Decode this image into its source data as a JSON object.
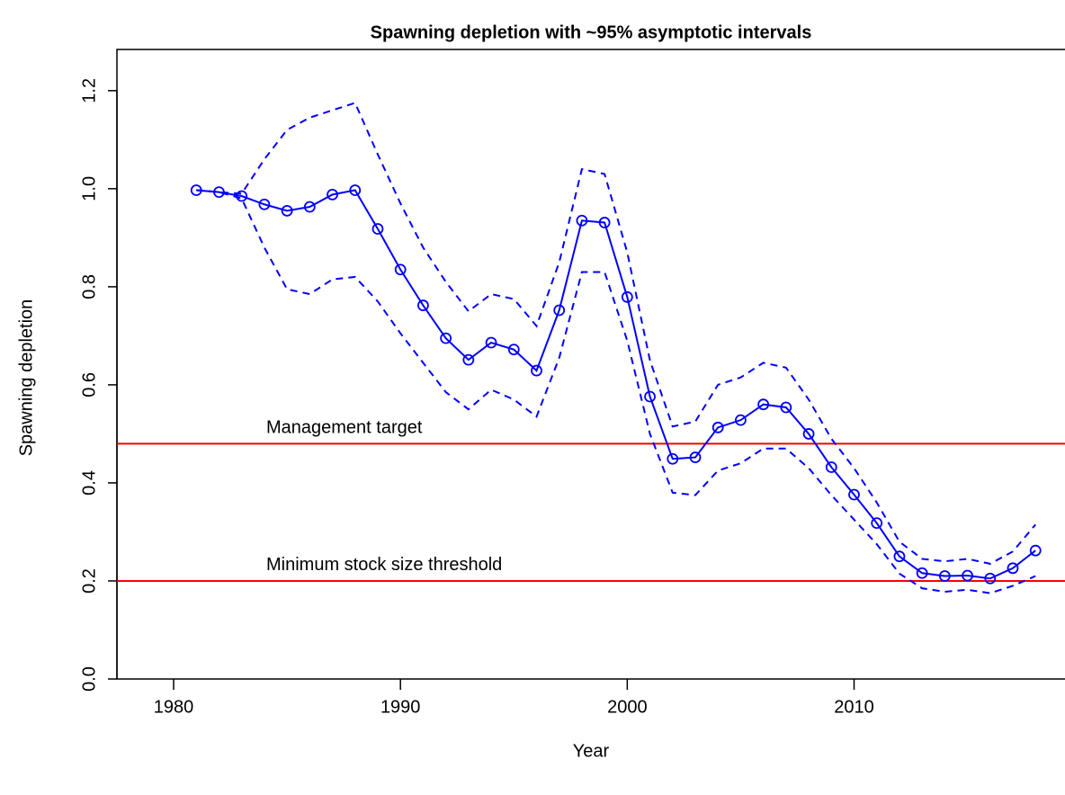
{
  "chart_data": {
    "type": "line",
    "title": "Spawning depletion with ~95% asymptotic intervals",
    "x_label": "Year",
    "y_label": "Spawning depletion",
    "x": [
      1981,
      1982,
      1983,
      1984,
      1985,
      1986,
      1987,
      1988,
      1989,
      1990,
      1991,
      1992,
      1993,
      1994,
      1995,
      1996,
      1997,
      1998,
      1999,
      2000,
      2001,
      2002,
      2003,
      2004,
      2005,
      2006,
      2007,
      2008,
      2009,
      2010,
      2011,
      2012,
      2013,
      2014,
      2015,
      2016,
      2017,
      2018
    ],
    "series": [
      {
        "color": "#0000ff",
        "dashed": false,
        "markers": true,
        "values": [
          0.997,
          0.993,
          0.985,
          0.968,
          0.955,
          0.963,
          0.988,
          0.997,
          0.918,
          0.835,
          0.762,
          0.695,
          0.651,
          0.686,
          0.672,
          0.629,
          0.752,
          0.935,
          0.931,
          0.779,
          0.576,
          0.449,
          0.452,
          0.513,
          0.528,
          0.56,
          0.554,
          0.5,
          0.432,
          0.376,
          0.318,
          0.25,
          0.216,
          0.21,
          0.211,
          0.205,
          0.226,
          0.262
        ]
      },
      {
        "color": "#0000ff",
        "dashed": true,
        "markers": false,
        "values": [
          0.997,
          0.993,
          0.99,
          1.06,
          1.12,
          1.145,
          1.16,
          1.175,
          1.07,
          0.97,
          0.88,
          0.81,
          0.75,
          0.785,
          0.775,
          0.72,
          0.85,
          1.04,
          1.03,
          0.87,
          0.65,
          0.515,
          0.525,
          0.6,
          0.615,
          0.645,
          0.635,
          0.57,
          0.49,
          0.43,
          0.36,
          0.28,
          0.245,
          0.24,
          0.245,
          0.235,
          0.26,
          0.315
        ]
      },
      {
        "color": "#0000ff",
        "dashed": true,
        "markers": false,
        "values": [
          0.997,
          0.993,
          0.98,
          0.88,
          0.795,
          0.785,
          0.815,
          0.82,
          0.77,
          0.705,
          0.645,
          0.585,
          0.55,
          0.59,
          0.57,
          0.535,
          0.655,
          0.83,
          0.83,
          0.69,
          0.5,
          0.38,
          0.375,
          0.425,
          0.44,
          0.47,
          0.47,
          0.43,
          0.375,
          0.325,
          0.275,
          0.215,
          0.185,
          0.178,
          0.182,
          0.175,
          0.19,
          0.21
        ]
      }
    ],
    "hlines": [
      {
        "value": 0.48,
        "label": "Management target",
        "color": "#ff0000"
      },
      {
        "value": 0.2,
        "label": "Minimum stock size threshold",
        "color": "#ff0000"
      }
    ],
    "xlim": [
      1977.5,
      2019.3
    ],
    "xticks": [
      1980,
      1990,
      2000,
      2010
    ],
    "ylim": [
      0,
      1.284
    ],
    "yticks": [
      {
        "value": 0,
        "label": "0.0"
      },
      0.2,
      0.4,
      0.6,
      0.8,
      {
        "value": 1,
        "label": "1.0"
      },
      1.2
    ]
  }
}
